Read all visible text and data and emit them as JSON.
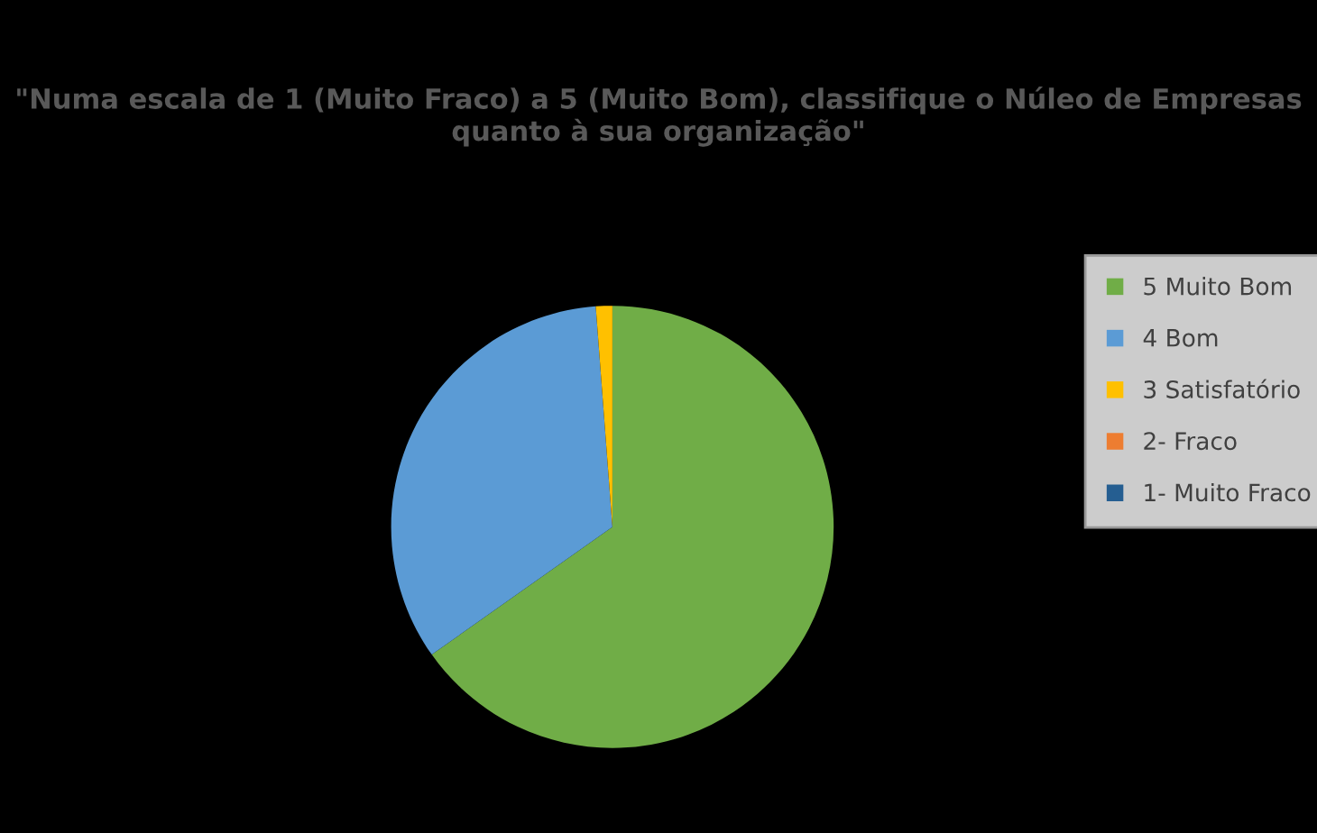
{
  "chart_data": {
    "type": "pie",
    "title": "\"Numa escala de 1 (Muito Fraco) a 5 (Muito Bom), classifique o Núleo de Empresas quanto à sua organização\"",
    "categories": [
      "5 Muito Bom",
      "4 Bom",
      "3 Satisfatório",
      "2- Fraco",
      "1- Muito Fraco"
    ],
    "values": [
      65.2,
      33.6,
      1.2,
      0,
      0
    ],
    "colors": [
      "#70ad47",
      "#5b9bd5",
      "#ffc000",
      "#ed7d31",
      "#255e91"
    ],
    "legend": "right"
  }
}
